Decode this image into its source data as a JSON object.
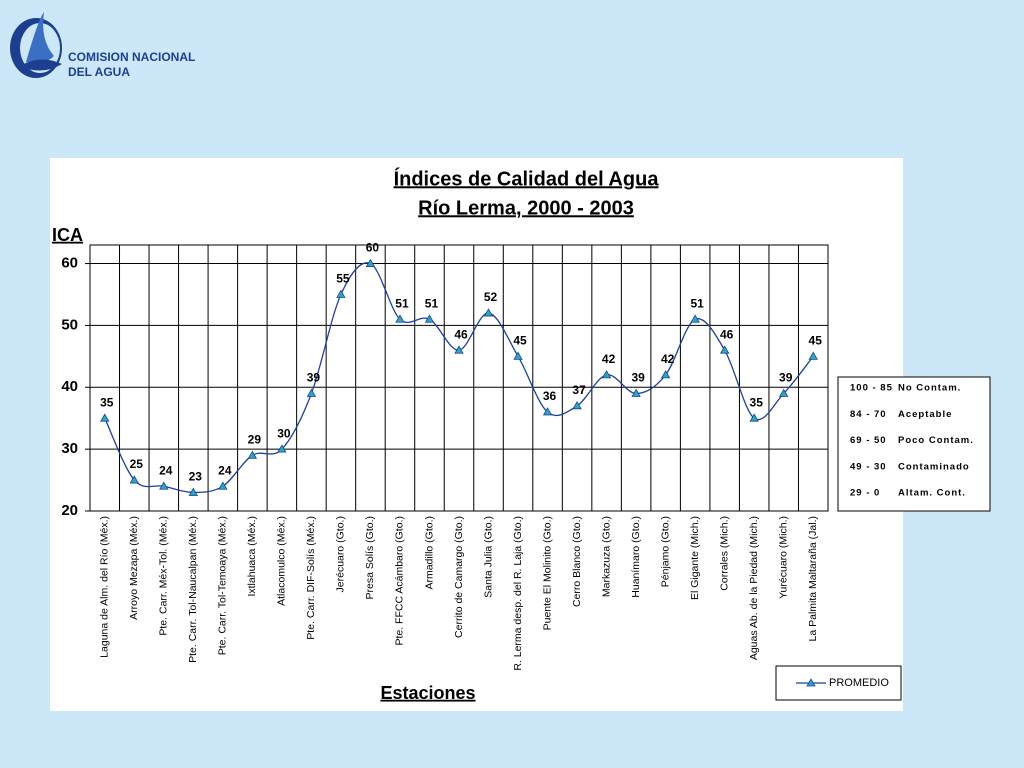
{
  "header": {
    "org_line1": "COMISION NACIONAL",
    "org_line2": "DEL AGUA"
  },
  "chart_data": {
    "type": "line",
    "title": "Índices de Calidad del Agua",
    "subtitle": "Río Lerma, 2000 - 2003",
    "y_label": "ICA",
    "x_label": "Estaciones",
    "categories": [
      "Laguna de Alm. del Río (Méx.)",
      "Arroyo Mezapa (Méx.)",
      "Pte. Carr. Méx-Tol. (Méx.)",
      "Pte. Carr. Tol-Naucalpan (Méx.)",
      "Pte. Carr. Tol-Temoaya (Méx.)",
      "Ixtlahuaca (Méx.)",
      "Atlacomulco (Méx.)",
      "Pte. Carr. DIF-Solís (Méx.)",
      "Jerécuaro (Gto.)",
      "Presa Solís (Gto.)",
      "Pte. FFCC Acámbaro (Gto.)",
      "Armadillo (Gto.)",
      "Cerrito de Camargo (Gto.)",
      "Santa Julia (Gto.)",
      "R. Lerma desp. del R. Laja (Gto.)",
      "Puente El Molinito (Gto.)",
      "Cerro Blanco (Gto.)",
      "Markazuza (Gto.)",
      "Huanímaro (Gto.)",
      "Pénjamo (Gto.)",
      "El Gigante (Mich.)",
      "Corrales (Mich.)",
      "Aguas Ab. de la Piedad (Mich.)",
      "Yurécuaro (Mich.)",
      "La Palmita Maltaraña (Jal.)"
    ],
    "series": [
      {
        "name": "PROMEDIO",
        "color": "#1f3f9f",
        "marker_color": "#2aa8b8",
        "values": [
          35,
          25,
          24,
          23,
          24,
          29,
          30,
          39,
          55,
          60,
          51,
          51,
          46,
          52,
          45,
          36,
          37,
          42,
          39,
          42,
          51,
          46,
          35,
          39,
          45
        ]
      }
    ],
    "ylim": [
      20,
      63
    ],
    "yticks": [
      20,
      30,
      40,
      50,
      60
    ],
    "grid": true,
    "legend": "lower right",
    "annotations": [
      {
        "range": "100 - 85",
        "label": "No Contam."
      },
      {
        "range": "84 - 70",
        "label": "Aceptable"
      },
      {
        "range": "69 - 50",
        "label": "Poco Contam."
      },
      {
        "range": "49 - 30",
        "label": "Contaminado"
      },
      {
        "range": "29 - 0",
        "label": "Altam. Cont."
      }
    ]
  }
}
